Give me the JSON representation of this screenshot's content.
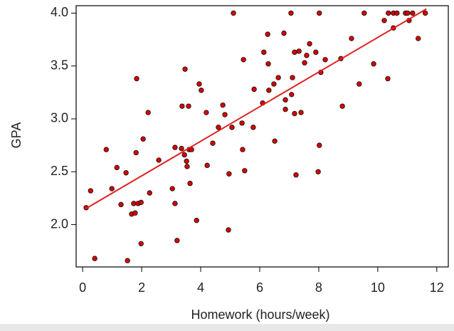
{
  "chart_data": {
    "type": "scatter",
    "xlabel": "Homework (hours/week)",
    "ylabel": "GPA",
    "x": [
      0.12,
      0.27,
      0.41,
      0.8,
      0.99,
      1.16,
      1.3,
      1.47,
      1.52,
      1.66,
      1.73,
      1.78,
      1.81,
      1.83,
      1.88,
      1.98,
      1.98,
      2.05,
      2.22,
      2.27,
      2.58,
      3.04,
      3.13,
      3.13,
      3.2,
      3.35,
      3.37,
      3.45,
      3.47,
      3.52,
      3.54,
      3.59,
      3.61,
      3.64,
      3.69,
      3.86,
      3.95,
      4.02,
      4.19,
      4.22,
      4.41,
      4.6,
      4.75,
      4.82,
      4.94,
      4.96,
      5.06,
      5.11,
      5.4,
      5.42,
      5.45,
      5.49,
      5.78,
      5.81,
      6.1,
      6.14,
      6.27,
      6.29,
      6.31,
      6.48,
      6.51,
      6.63,
      6.82,
      6.87,
      6.87,
      7.06,
      7.08,
      7.11,
      7.18,
      7.18,
      7.23,
      7.33,
      7.4,
      7.52,
      7.59,
      7.69,
      7.9,
      7.98,
      8.02,
      8.02,
      8.07,
      8.22,
      8.75,
      8.8,
      9.11,
      9.37,
      9.54,
      9.86,
      10.22,
      10.34,
      10.36,
      10.53,
      10.53,
      10.65,
      10.94,
      11.01,
      11.06,
      11.18,
      11.37,
      11.61
    ],
    "y": [
      2.16,
      2.32,
      1.68,
      2.71,
      2.34,
      2.54,
      2.19,
      2.49,
      1.66,
      2.1,
      2.2,
      2.11,
      2.68,
      3.38,
      2.2,
      2.21,
      1.82,
      2.81,
      3.06,
      2.3,
      2.61,
      2.34,
      2.73,
      2.2,
      1.85,
      2.72,
      3.12,
      2.66,
      3.47,
      2.6,
      2.55,
      3.12,
      2.71,
      2.39,
      2.71,
      2.04,
      3.33,
      3.27,
      3.06,
      2.56,
      2.77,
      2.92,
      3.13,
      3.04,
      1.95,
      2.48,
      2.92,
      4.0,
      2.96,
      2.71,
      3.56,
      2.51,
      2.92,
      3.28,
      3.15,
      3.63,
      3.8,
      3.52,
      3.27,
      3.33,
      2.79,
      3.39,
      3.81,
      3.09,
      3.18,
      4.0,
      3.23,
      3.39,
      3.63,
      3.05,
      2.47,
      3.64,
      3.06,
      3.53,
      3.6,
      3.71,
      3.63,
      2.5,
      4.0,
      2.75,
      3.44,
      3.56,
      3.57,
      3.12,
      3.76,
      3.33,
      4.0,
      3.52,
      3.93,
      3.38,
      4.0,
      3.86,
      4.0,
      4.0,
      4.0,
      4.0,
      3.93,
      4.0,
      3.76,
      4.0
    ],
    "color": "#d40000",
    "fit": {
      "x": [
        0.1,
        11.65
      ],
      "y": [
        2.15,
        4.04
      ],
      "color": "#e02020"
    },
    "xlim": [
      -0.22,
      12.39
    ],
    "ylim": [
      1.6,
      4.07
    ],
    "xticks": [
      0,
      2,
      4,
      6,
      8,
      10,
      12
    ],
    "yticks": [
      {
        "value": 2,
        "label": "2.0"
      },
      {
        "value": 2.5,
        "label": "2.5"
      },
      {
        "value": 3,
        "label": "3.0"
      },
      {
        "value": 3.5,
        "label": "3.5"
      },
      {
        "value": 4,
        "label": "4.0"
      }
    ]
  }
}
